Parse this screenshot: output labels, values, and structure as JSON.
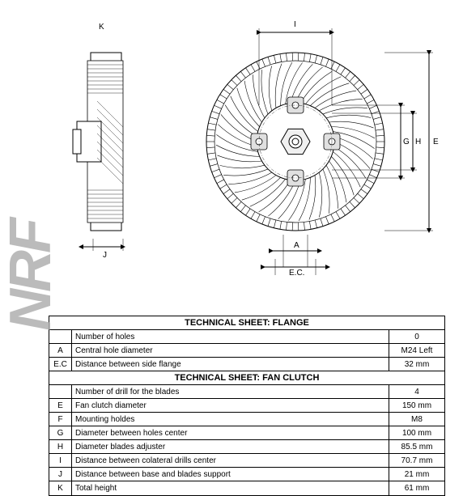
{
  "watermark": "NRF",
  "drawing": {
    "side_view": {
      "dim_K": "K",
      "dim_J": "J"
    },
    "front_view": {
      "dim_I": "I",
      "dim_A": "A",
      "dim_EC": "E.C.",
      "dim_E": "E",
      "dim_G": "G",
      "dim_H": "H"
    },
    "colors": {
      "line": "#000000",
      "gray_fill": "#d0d0d0",
      "bg": "#ffffff"
    }
  },
  "table": {
    "header_flange": "TECHNICAL SHEET: FLANGE",
    "header_clutch": "TECHNICAL SHEET: FAN CLUTCH",
    "rows": [
      {
        "code": "",
        "label": "Number of holes",
        "value": "0"
      },
      {
        "code": "A",
        "label": "Central hole diameter",
        "value": "M24 Left"
      },
      {
        "code": "E.C",
        "label": "Distance between side flange",
        "value": "32 mm"
      },
      {
        "code": "",
        "label": "Number of drill for the blades",
        "value": "4"
      },
      {
        "code": "E",
        "label": "Fan clutch diameter",
        "value": "150 mm"
      },
      {
        "code": "F",
        "label": "Mounting holdes",
        "value": "M8"
      },
      {
        "code": "G",
        "label": "Diameter between holes center",
        "value": "100 mm"
      },
      {
        "code": "H",
        "label": "Diameter blades adjuster",
        "value": "85.5 mm"
      },
      {
        "code": "I",
        "label": "Distance between colateral drills center",
        "value": "70.7 mm"
      },
      {
        "code": "J",
        "label": "Distance between base and blades support",
        "value": "21 mm"
      },
      {
        "code": "K",
        "label": "Total height",
        "value": "61 mm"
      }
    ]
  }
}
